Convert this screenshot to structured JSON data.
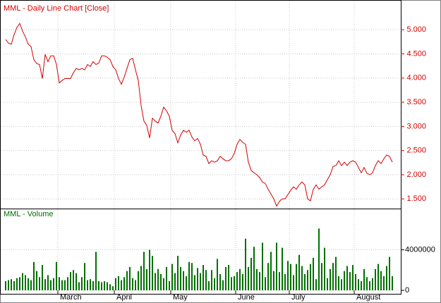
{
  "chart_data": [
    {
      "type": "line",
      "title": "MML - Daily Line Chart [Close]",
      "color": "#d40000",
      "ylim": [
        1.3,
        5.6
      ],
      "yticks": [
        {
          "value": 1.5,
          "label": "1.500"
        },
        {
          "value": 2,
          "label": "2.000"
        },
        {
          "value": 2.5,
          "label": "2.500"
        },
        {
          "value": 3,
          "label": "3.000"
        },
        {
          "value": 3.5,
          "label": "3.500"
        },
        {
          "value": 4,
          "label": "4.000"
        },
        {
          "value": 4.5,
          "label": "4.500"
        },
        {
          "value": 5,
          "label": "5.000"
        }
      ],
      "grid": true,
      "values": [
        4.8,
        4.72,
        4.7,
        4.9,
        5.05,
        5.13,
        4.97,
        4.85,
        4.7,
        4.65,
        4.38,
        4.3,
        4.28,
        3.99,
        4.49,
        4.34,
        4.46,
        4.46,
        4.28,
        3.9,
        3.95,
        3.99,
        3.99,
        3.99,
        4.11,
        4.2,
        4.17,
        4.2,
        4.17,
        4.28,
        4.24,
        4.34,
        4.28,
        4.31,
        4.46,
        4.46,
        4.43,
        4.38,
        4.24,
        4.17,
        3.99,
        3.87,
        4.02,
        4.2,
        4.38,
        4.41,
        4.17,
        3.95,
        3.43,
        3.11,
        3.02,
        2.76,
        3.17,
        3.11,
        3.07,
        3.21,
        3.4,
        3.32,
        3.21,
        2.92,
        2.85,
        2.66,
        2.82,
        2.92,
        2.88,
        2.92,
        2.78,
        2.7,
        2.75,
        2.63,
        2.41,
        2.38,
        2.23,
        2.29,
        2.26,
        2.29,
        2.38,
        2.33,
        2.29,
        2.29,
        2.33,
        2.44,
        2.63,
        2.73,
        2.67,
        2.63,
        2.26,
        2.09,
        2.04,
        2.0,
        1.94,
        1.85,
        1.82,
        1.7,
        1.6,
        1.5,
        1.35,
        1.45,
        1.5,
        1.5,
        1.59,
        1.68,
        1.75,
        1.7,
        1.79,
        1.85,
        1.79,
        1.5,
        1.46,
        1.7,
        1.79,
        1.7,
        1.75,
        1.79,
        1.9,
        2.0,
        2.17,
        2.19,
        2.29,
        2.19,
        2.26,
        2.19,
        2.26,
        2.29,
        2.26,
        2.15,
        2.04,
        2.15,
        2.03,
        2.0,
        2.04,
        2.19,
        2.29,
        2.23,
        2.33,
        2.41,
        2.38,
        2.26
      ]
    },
    {
      "type": "bar",
      "title": "MML - Volume",
      "color": "#007000",
      "ylim": [
        0,
        8000000
      ],
      "yticks": [
        0,
        4000000
      ],
      "grid": true,
      "categories": [
        null,
        null,
        null,
        null,
        null,
        null,
        null,
        null,
        null,
        null,
        null,
        null,
        null,
        null,
        null,
        null,
        null,
        null,
        null,
        "March",
        null,
        null,
        null,
        null,
        null,
        null,
        null,
        null,
        null,
        null,
        null,
        null,
        null,
        null,
        null,
        null,
        null,
        null,
        null,
        "April",
        null,
        null,
        null,
        null,
        null,
        null,
        null,
        null,
        null,
        null,
        null,
        null,
        null,
        null,
        null,
        null,
        null,
        null,
        null,
        "May",
        null,
        null,
        null,
        null,
        null,
        null,
        null,
        null,
        null,
        null,
        null,
        null,
        null,
        null,
        null,
        null,
        null,
        null,
        null,
        null,
        null,
        null,
        "June",
        null,
        null,
        null,
        null,
        null,
        null,
        null,
        null,
        null,
        null,
        null,
        null,
        null,
        null,
        null,
        null,
        null,
        null,
        "July",
        null,
        null,
        null,
        null,
        null,
        null,
        null,
        null,
        null,
        null,
        null,
        null,
        null,
        null,
        null,
        null,
        null,
        null,
        null,
        null,
        null,
        null,
        "August",
        null,
        null,
        null,
        null,
        null,
        null,
        null,
        null,
        null,
        null,
        null,
        null,
        null
      ],
      "values": [
        900000,
        1000000,
        1100000,
        900000,
        1200000,
        1300000,
        1700000,
        1500000,
        1200000,
        1000000,
        2800000,
        1900000,
        1300000,
        2500000,
        1100000,
        1500000,
        1000000,
        1200000,
        2800000,
        1300000,
        1000000,
        1000000,
        1300000,
        1800000,
        2000000,
        1700000,
        800000,
        1300000,
        2700000,
        1000000,
        1100000,
        900000,
        3800000,
        900000,
        800000,
        900000,
        800000,
        600000,
        400000,
        1200000,
        1400000,
        1000000,
        1300000,
        1900000,
        2300000,
        1200000,
        1000000,
        1900000,
        2400000,
        3800000,
        2100000,
        4000000,
        3400000,
        1700000,
        2100000,
        1600000,
        1200000,
        2300000,
        900000,
        2600000,
        1700000,
        3400000,
        2300000,
        1900000,
        1400000,
        2800000,
        2700000,
        1500000,
        2200000,
        1700000,
        2500000,
        2000000,
        900000,
        2000000,
        1200000,
        3100000,
        1600000,
        1000000,
        2300000,
        2500000,
        1300000,
        1400000,
        1800000,
        2100000,
        1600000,
        5100000,
        2300000,
        3200000,
        4300000,
        2100000,
        1800000,
        4700000,
        1300000,
        2700000,
        3800000,
        1900000,
        4700000,
        1800000,
        4200000,
        1600000,
        2900000,
        2600000,
        1500000,
        2600000,
        3500000,
        2400000,
        1600000,
        2000000,
        2600000,
        3200000,
        1100000,
        6100000,
        2700000,
        4200000,
        1200000,
        2100000,
        2700000,
        3300000,
        1400000,
        1100000,
        1900000,
        2400000,
        1800000,
        2500000,
        1600000,
        1100000,
        900000,
        2100000,
        1300000,
        900000,
        1200000,
        2100000,
        2600000,
        1900000,
        1400000,
        2400000,
        3300000,
        1400000
      ]
    }
  ]
}
